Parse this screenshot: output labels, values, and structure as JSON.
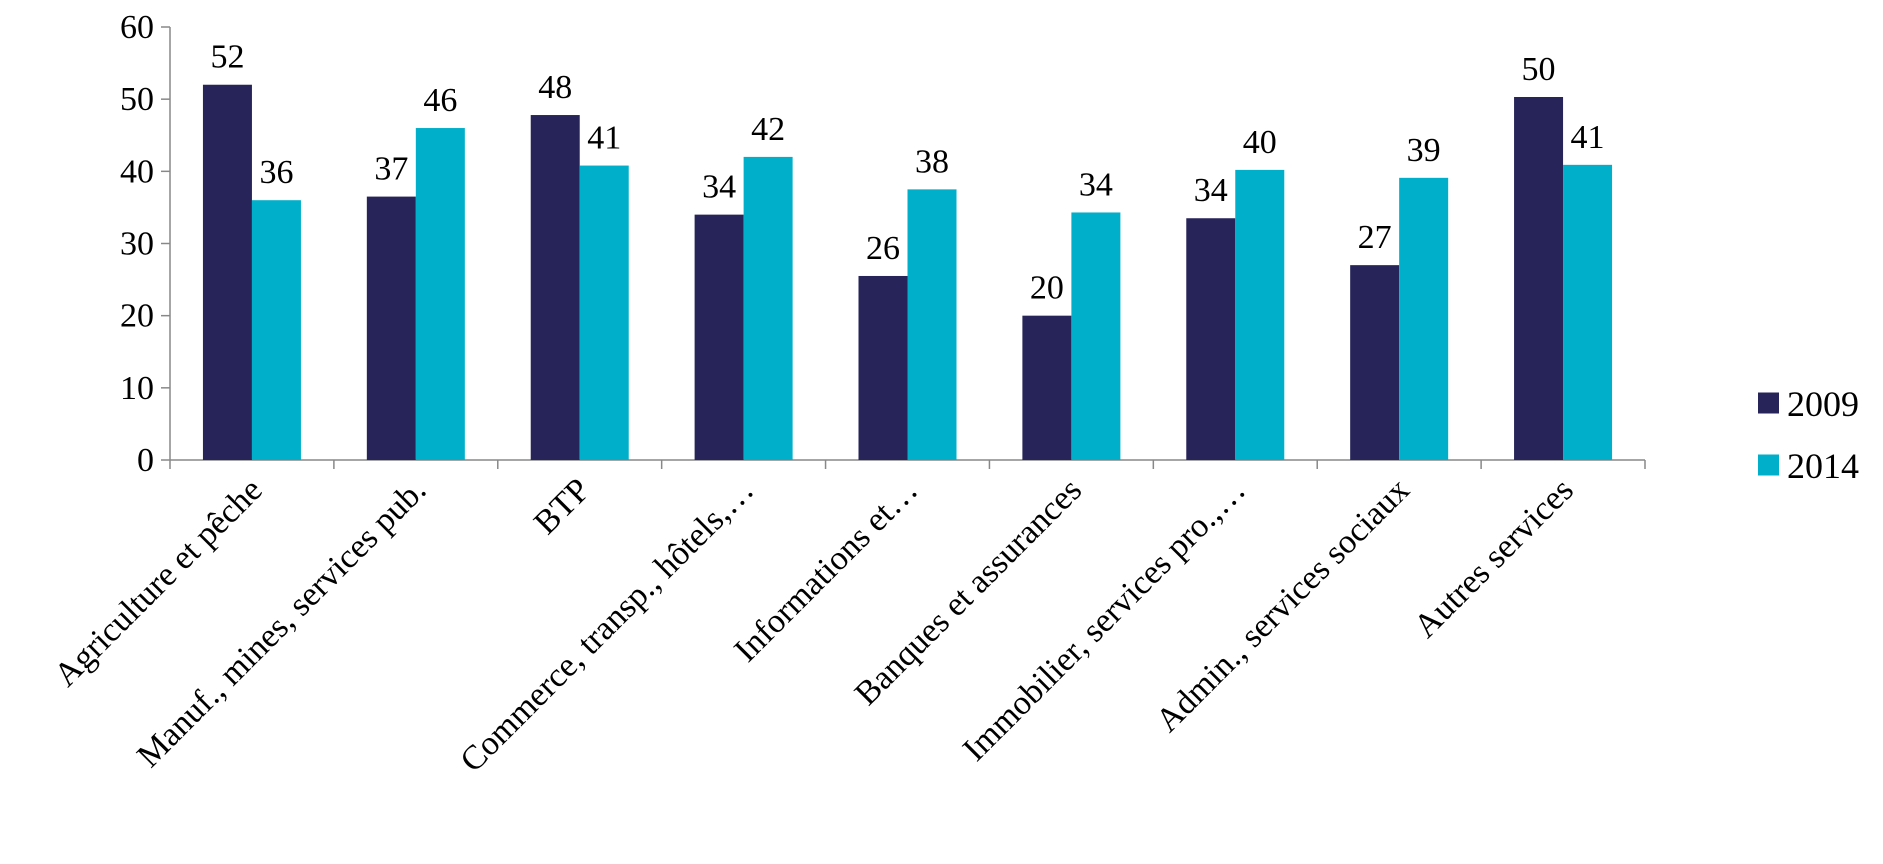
{
  "chart_data": {
    "type": "bar",
    "title": "",
    "xlabel": "",
    "ylabel": "",
    "ylim": [
      0,
      60
    ],
    "yticks": [
      0,
      10,
      20,
      30,
      40,
      50,
      60
    ],
    "grid": false,
    "legend_position": "right",
    "categories": [
      "Agriculture et pêche",
      "Manuf., mines, services pub.",
      "BTP",
      "Commerce, transp., hôtels,…",
      "Informations et…",
      "Banques et assurances",
      "Immobilier, services pro.,…",
      "Admin., services sociaux",
      "Autres services"
    ],
    "series": [
      {
        "name": "2009",
        "color": "#262458",
        "values": [
          52,
          36.5,
          47.8,
          34,
          25.5,
          20,
          33.5,
          27,
          50.3
        ],
        "labels": [
          "52",
          "37",
          "48",
          "34",
          "26",
          "20",
          "34",
          "27",
          "50"
        ]
      },
      {
        "name": "2014",
        "color": "#00AFC9",
        "values": [
          36,
          46,
          40.8,
          42,
          37.5,
          34.3,
          40.2,
          39.1,
          40.9
        ],
        "labels": [
          "36",
          "46",
          "41",
          "42",
          "38",
          "34",
          "40",
          "39",
          "41"
        ]
      }
    ]
  }
}
